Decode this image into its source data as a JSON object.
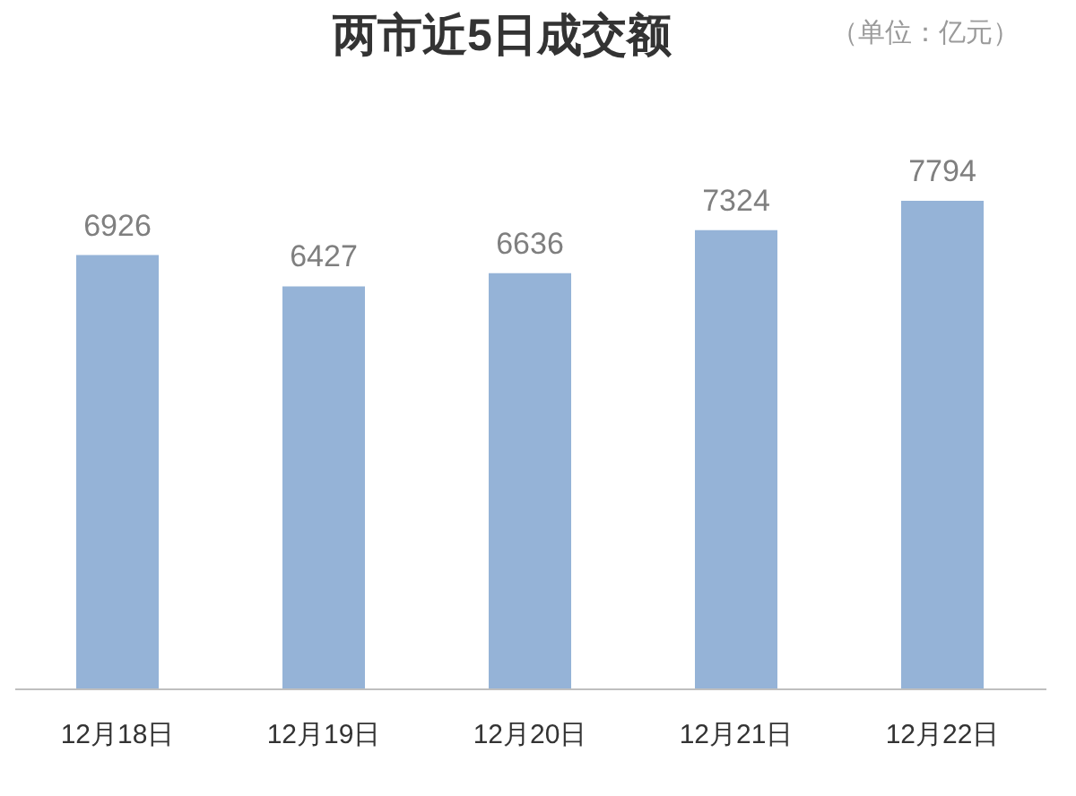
{
  "chart_data": {
    "type": "bar",
    "title": "两市近5日成交额",
    "subtitle": "（单位：亿元）",
    "categories": [
      "12月18日",
      "12月19日",
      "12月20日",
      "12月21日",
      "12月22日"
    ],
    "values": [
      6926,
      6427,
      6636,
      7324,
      7794
    ],
    "color": "#95b3d7",
    "data_labels": true,
    "tick_labels": "x"
  }
}
